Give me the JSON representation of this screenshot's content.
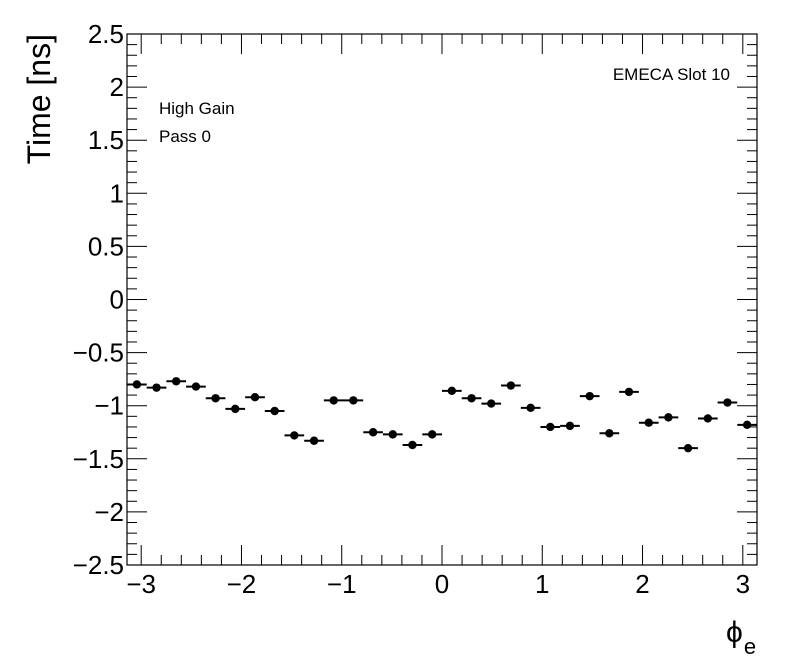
{
  "chart_data": {
    "type": "scatter",
    "title": "",
    "xlabel": "ϕ",
    "xlabel_subscript": "e",
    "ylabel": "Time [ns]",
    "xlim": [
      -3.1416,
      3.1416
    ],
    "ylim": [
      -2.5,
      2.5
    ],
    "grid": false,
    "legend": "none",
    "x_ticks": [
      -3,
      -2,
      -1,
      0,
      1,
      2,
      3
    ],
    "x_tick_labels": [
      "−3",
      "−2",
      "−1",
      "0",
      "1",
      "2",
      "3"
    ],
    "y_ticks": [
      -2.5,
      -2,
      -1.5,
      -1,
      -0.5,
      0,
      0.5,
      1,
      1.5,
      2,
      2.5
    ],
    "y_tick_labels": [
      "−2.5",
      "−2",
      "−1.5",
      "−1",
      "−0.5",
      "0",
      "0.5",
      "1",
      "1.5",
      "2",
      "2.5"
    ],
    "annotations": {
      "top_right": "EMECA Slot 10",
      "line1": "High Gain",
      "line2": "Pass 0"
    },
    "marker_color": "#000000",
    "points": [
      {
        "x": -3.043,
        "y": -0.8
      },
      {
        "x": -2.847,
        "y": -0.83
      },
      {
        "x": -2.651,
        "y": -0.77
      },
      {
        "x": -2.454,
        "y": -0.82
      },
      {
        "x": -2.258,
        "y": -0.93
      },
      {
        "x": -2.062,
        "y": -1.03
      },
      {
        "x": -1.865,
        "y": -0.92
      },
      {
        "x": -1.669,
        "y": -1.05
      },
      {
        "x": -1.473,
        "y": -1.28
      },
      {
        "x": -1.276,
        "y": -1.33
      },
      {
        "x": -1.08,
        "y": -0.95
      },
      {
        "x": -0.884,
        "y": -0.95
      },
      {
        "x": -0.687,
        "y": -1.25
      },
      {
        "x": -0.491,
        "y": -1.27
      },
      {
        "x": -0.295,
        "y": -1.37
      },
      {
        "x": -0.098,
        "y": -1.27
      },
      {
        "x": 0.098,
        "y": -0.86
      },
      {
        "x": 0.295,
        "y": -0.93
      },
      {
        "x": 0.491,
        "y": -0.98
      },
      {
        "x": 0.687,
        "y": -0.81
      },
      {
        "x": 0.884,
        "y": -1.02
      },
      {
        "x": 1.08,
        "y": -1.2
      },
      {
        "x": 1.276,
        "y": -1.19
      },
      {
        "x": 1.473,
        "y": -0.91
      },
      {
        "x": 1.669,
        "y": -1.26
      },
      {
        "x": 1.865,
        "y": -0.87
      },
      {
        "x": 2.062,
        "y": -1.16
      },
      {
        "x": 2.258,
        "y": -1.11
      },
      {
        "x": 2.454,
        "y": -1.4
      },
      {
        "x": 2.651,
        "y": -1.12
      },
      {
        "x": 2.847,
        "y": -0.97
      },
      {
        "x": 3.043,
        "y": -1.18
      }
    ]
  }
}
